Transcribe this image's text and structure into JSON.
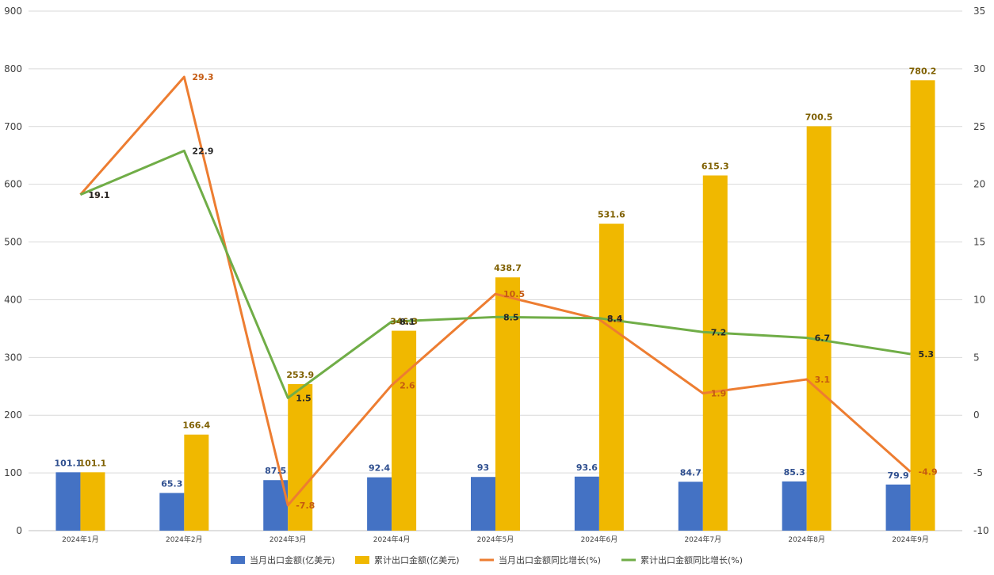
{
  "chart_data": {
    "type": "bar+line",
    "categories": [
      "2024年1月",
      "2024年2月",
      "2024年3月",
      "2024年4月",
      "2024年5月",
      "2024年6月",
      "2024年7月",
      "2024年8月",
      "2024年9月"
    ],
    "series": [
      {
        "name": "当月出口金额(亿美元)",
        "kind": "bar",
        "axis": "left",
        "color": "#4472C4",
        "label_color": "#2F4F8F",
        "values": [
          101.1,
          65.3,
          87.5,
          92.4,
          93,
          93.6,
          84.7,
          85.3,
          79.9
        ],
        "labels": [
          "101.1",
          "65.3",
          "87.5",
          "92.4",
          "93",
          "93.6",
          "84.7",
          "85.3",
          "79.9"
        ]
      },
      {
        "name": "累计出口金额(亿美元)",
        "kind": "bar",
        "axis": "left",
        "color": "#F0B800",
        "label_color": "#7F6000",
        "values": [
          101.1,
          166.4,
          253.9,
          346.3,
          438.7,
          531.6,
          615.3,
          700.5,
          780.2
        ],
        "labels": [
          "101.1",
          "166.4",
          "253.9",
          "346.3",
          "438.7",
          "531.6",
          "615.3",
          "700.5",
          "780.2"
        ]
      },
      {
        "name": "当月出口金额同比增长(%)",
        "kind": "line",
        "axis": "right",
        "color": "#ED7D31",
        "label_color": "#C55A11",
        "values": [
          19.1,
          29.3,
          -7.8,
          2.6,
          10.5,
          8.3,
          1.9,
          3.1,
          -4.9
        ],
        "labels": [
          "19.1",
          "29.3",
          "-7.8",
          "2.6",
          "10.5",
          "8.3",
          "1.9",
          "3.1",
          "-4.9"
        ]
      },
      {
        "name": "累计出口金额同比增长(%)",
        "kind": "line",
        "axis": "right",
        "color": "#70AD47",
        "label_color": "#262626",
        "values": [
          19.1,
          22.9,
          1.5,
          8.1,
          8.5,
          8.4,
          7.2,
          6.7,
          5.3
        ],
        "labels": [
          "19.1",
          "22.9",
          "1.5",
          "8.1",
          "8.5",
          "8.4",
          "7.2",
          "6.7",
          "5.3"
        ]
      }
    ],
    "y_left": {
      "min": 0,
      "max": 900,
      "ticks": [
        "0",
        "100",
        "200",
        "300",
        "400",
        "500",
        "600",
        "700",
        "800",
        "900"
      ]
    },
    "y_right": {
      "min": -10,
      "max": 35,
      "ticks": [
        "-10",
        "-5",
        "0",
        "5",
        "10",
        "15",
        "20",
        "25",
        "30",
        "35"
      ]
    },
    "grid": true,
    "legend_position": "bottom"
  }
}
